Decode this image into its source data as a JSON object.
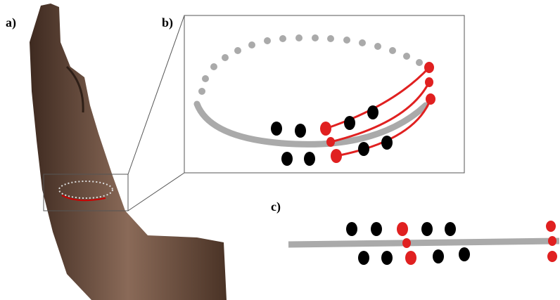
{
  "panels": {
    "a": {
      "label": "a)"
    },
    "b": {
      "label": "b)"
    },
    "c": {
      "label": "c)"
    }
  }
}
